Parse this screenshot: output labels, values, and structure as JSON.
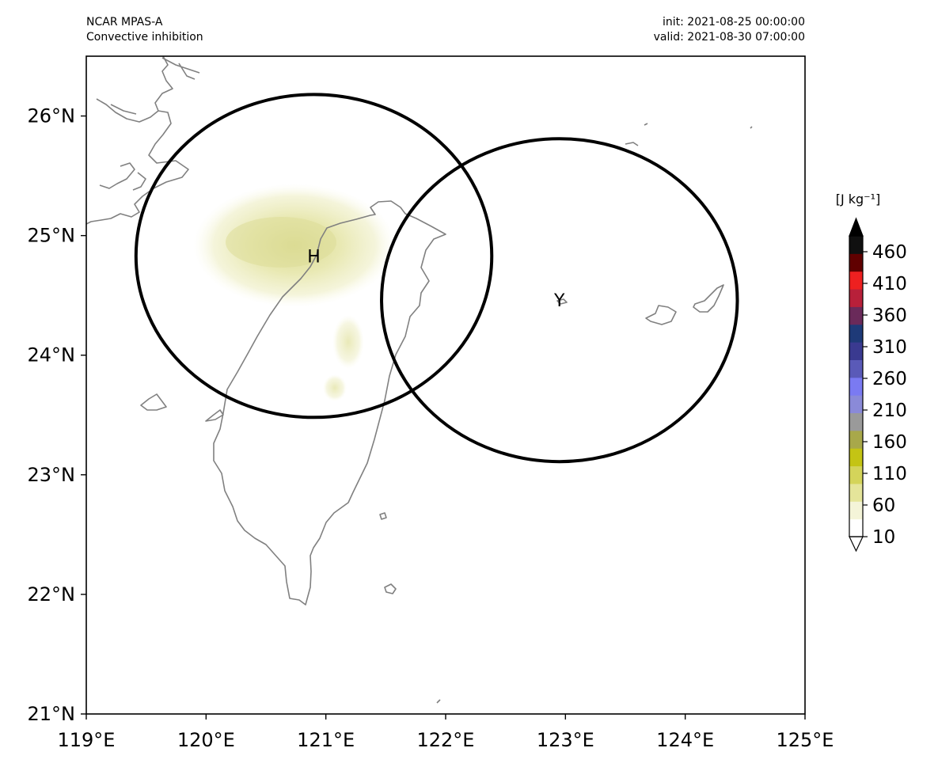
{
  "header": {
    "model": "NCAR MPAS-A",
    "field": "Convective inhibition",
    "init": "init: 2021-08-25 00:00:00",
    "valid": "valid: 2021-08-30 07:00:00"
  },
  "map": {
    "lon_range": [
      119,
      125
    ],
    "lat_range": [
      21,
      26.5
    ],
    "lon_ticks": [
      "119°E",
      "120°E",
      "121°E",
      "122°E",
      "123°E",
      "124°E",
      "125°E"
    ],
    "lat_ticks": [
      "21°N",
      "22°N",
      "23°N",
      "24°N",
      "25°N",
      "26°N"
    ],
    "coastline_color": "#808080",
    "circles": [
      {
        "label": "H",
        "lon": 120.9,
        "lat": 24.83,
        "radius_deg": 1.35
      },
      {
        "label": "Y",
        "lon": 122.95,
        "lat": 24.46,
        "radius_deg": 1.35
      }
    ],
    "field_blobs": [
      {
        "name": "north-taiwan-cin",
        "lon": 120.85,
        "lat": 24.95,
        "max_value": 90
      },
      {
        "name": "central-mountain-cin",
        "lon": 121.3,
        "lat": 24.15,
        "max_value": 40
      },
      {
        "name": "south-mountain-cin",
        "lon": 121.1,
        "lat": 23.75,
        "max_value": 35
      }
    ]
  },
  "colorbar": {
    "unit_label": "[J kg⁻¹]",
    "ticks": [
      "460",
      "410",
      "360",
      "310",
      "260",
      "210",
      "160",
      "110",
      "60",
      "10"
    ],
    "range": [
      10,
      485
    ],
    "extend": "both",
    "colors": [
      "#ffffff",
      "#f4f4d8",
      "#e5e59a",
      "#d4d45a",
      "#c4c414",
      "#a8a84a",
      "#9a9a9a",
      "#8a8ad8",
      "#7a7af2",
      "#5a5ab8",
      "#3a3a90",
      "#1e3a78",
      "#6a2a5a",
      "#b8203a",
      "#ee2020",
      "#600000",
      "#101010"
    ]
  }
}
